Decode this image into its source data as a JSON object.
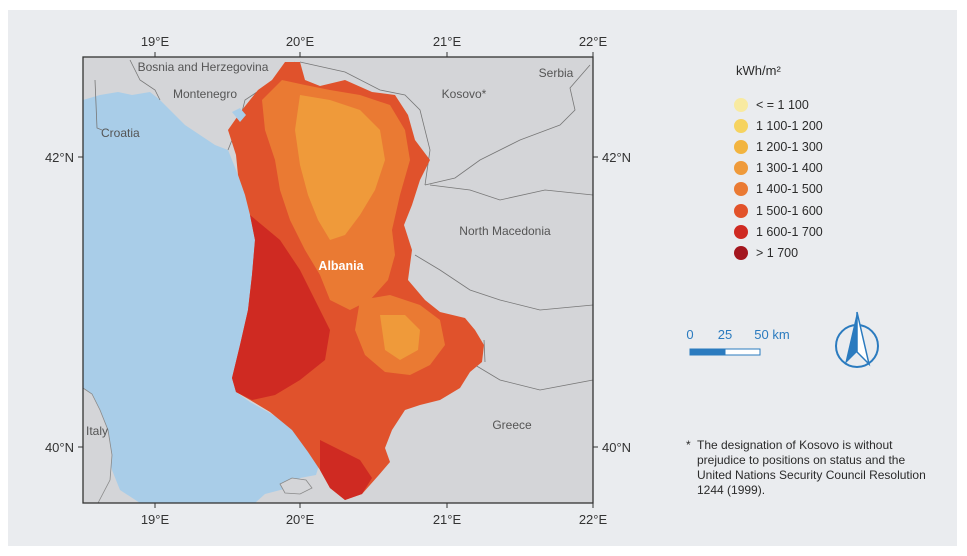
{
  "axes": {
    "top_longitudes": [
      "19°E",
      "20°E",
      "21°E",
      "22°E"
    ],
    "bottom_longitudes": [
      "19°E",
      "20°E",
      "21°E",
      "22°E"
    ],
    "left_latitudes": [
      "42°N",
      "40°N"
    ],
    "right_latitudes": [
      "42°N",
      "40°N"
    ]
  },
  "countries": {
    "bosnia": "Bosnia and Herzegovina",
    "serbia": "Serbia",
    "montenegro": "Montenegro",
    "kosovo": "Kosovo*",
    "croatia": "Croatia",
    "north_macedonia": "North Macedonia",
    "albania": "Albania",
    "greece": "Greece",
    "italy": "Italy"
  },
  "legend": {
    "title": "kWh/m²",
    "items": [
      {
        "label": "< = 1 100",
        "color": "#f8eaa0"
      },
      {
        "label": "1 100-1 200",
        "color": "#f6d35f"
      },
      {
        "label": "1 200-1 300",
        "color": "#f2b43f"
      },
      {
        "label": "1 300-1 400",
        "color": "#ef9a3a"
      },
      {
        "label": "1 400-1 500",
        "color": "#ea7a33"
      },
      {
        "label": "1 500-1 600",
        "color": "#e2522a"
      },
      {
        "label": "1 600-1 700",
        "color": "#cf2a22"
      },
      {
        "label": "> 1 700",
        "color": "#a3161e"
      }
    ]
  },
  "scale_bar": {
    "labels": [
      "0",
      "25",
      "50 km"
    ]
  },
  "footnote": {
    "mark": "*",
    "text": "The designation of Kosovo is without prejudice to positions on status and the United Nations Security Council Resolution 1244 (1999)."
  },
  "colors": {
    "sea": "#a9cde8",
    "land": "#d4d5d8",
    "panel": "#eaecef",
    "accent": "#2b7bbf"
  }
}
